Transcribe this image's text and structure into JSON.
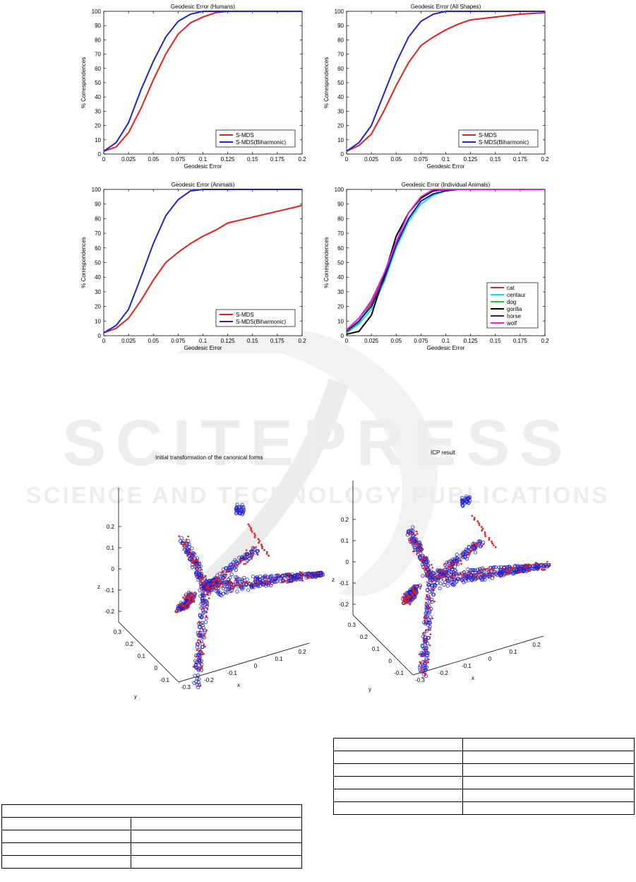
{
  "watermark": {
    "brand": "SCITEPRESS",
    "tagline": "SCIENCE AND TECHNOLOGY PUBLICATIONS"
  },
  "figure_top": {
    "panels": [
      {
        "title": "Geodesic Error (Humans)"
      },
      {
        "title": "Geodesic Error (All Shapes)"
      },
      {
        "title": "Geodesic Error (Animals)"
      },
      {
        "title": "Geodesic Error (Individual Animals)"
      }
    ]
  },
  "figure_bottom": {
    "left_title": "Initial transformation of the canonical forms",
    "right_title": "ICP result",
    "z_ticks": [
      "0.2",
      "0.1",
      "0",
      "-0.1",
      "-0.2"
    ],
    "y_ticks": [
      "0.3",
      "0.2",
      "0.1",
      "0",
      "-0.1"
    ],
    "x_ticks": [
      "0.2",
      "0.1",
      "0",
      "-0.1",
      "-0.2",
      "-0.3"
    ],
    "axis_x": "x",
    "axis_y": "y",
    "axis_z": "z",
    "colors": {
      "series_a": "#e0201c",
      "series_b": "#2222cc"
    }
  },
  "chart_data": [
    {
      "type": "line",
      "title": "Geodesic Error (Humans)",
      "xlabel": "Geodesic Error",
      "ylabel": "% Correspondences",
      "xlim": [
        0,
        0.2
      ],
      "ylim": [
        0,
        100
      ],
      "xticks": [
        "0",
        "0.025",
        "0.05",
        "0.075",
        "0.1",
        "0.125",
        "0.15",
        "0.175",
        "0.2"
      ],
      "yticks": [
        "0",
        "10",
        "20",
        "30",
        "40",
        "50",
        "60",
        "70",
        "80",
        "90",
        "100"
      ],
      "legend": "bottom-right",
      "series": [
        {
          "name": "S-MDS",
          "color": "#e0201c",
          "x": [
            0,
            0.0125,
            0.025,
            0.0375,
            0.05,
            0.0625,
            0.075,
            0.0875,
            0.1,
            0.1125,
            0.125,
            0.15,
            0.2
          ],
          "y": [
            2,
            5,
            15,
            32,
            52,
            70,
            84,
            92,
            96,
            99,
            100,
            100,
            100
          ]
        },
        {
          "name": "S-MDS(Biharmonic)",
          "color": "#2222cc",
          "x": [
            0,
            0.0125,
            0.025,
            0.0375,
            0.05,
            0.0625,
            0.075,
            0.0875,
            0.1,
            0.1125,
            0.125,
            0.2
          ],
          "y": [
            2,
            8,
            22,
            45,
            65,
            82,
            93,
            98,
            100,
            100,
            100,
            100
          ]
        }
      ]
    },
    {
      "type": "line",
      "title": "Geodesic Error (All Shapes)",
      "xlabel": "Geodesic Error",
      "ylabel": "% Correspondences",
      "xlim": [
        0,
        0.2
      ],
      "ylim": [
        0,
        100
      ],
      "xticks": [
        "0",
        "0.025",
        "0.05",
        "0.075",
        "0.1",
        "0.125",
        "0.15",
        "0.175",
        "0.2"
      ],
      "yticks": [
        "0",
        "10",
        "20",
        "30",
        "40",
        "50",
        "60",
        "70",
        "80",
        "90",
        "100"
      ],
      "legend": "bottom-right",
      "series": [
        {
          "name": "S-MDS",
          "color": "#e0201c",
          "x": [
            0,
            0.0125,
            0.025,
            0.0375,
            0.05,
            0.0625,
            0.075,
            0.0875,
            0.1,
            0.1125,
            0.125,
            0.15,
            0.175,
            0.2
          ],
          "y": [
            2,
            6,
            14,
            30,
            48,
            64,
            76,
            82,
            87,
            91,
            94,
            96,
            98,
            99
          ]
        },
        {
          "name": "S-MDS(Biharmonic)",
          "color": "#2222cc",
          "x": [
            0,
            0.0125,
            0.025,
            0.0375,
            0.05,
            0.0625,
            0.075,
            0.0875,
            0.1,
            0.1125,
            0.125,
            0.15,
            0.2
          ],
          "y": [
            2,
            8,
            20,
            42,
            64,
            82,
            93,
            98,
            100,
            100,
            100,
            100,
            100
          ]
        }
      ]
    },
    {
      "type": "line",
      "title": "Geodesic Error (Animals)",
      "xlabel": "Geodesic Error",
      "ylabel": "% Correspondences",
      "xlim": [
        0,
        0.2
      ],
      "ylim": [
        0,
        100
      ],
      "xticks": [
        "0",
        "0.025",
        "0.05",
        "0.075",
        "0.1",
        "0.125",
        "0.15",
        "0.175",
        "0.2"
      ],
      "yticks": [
        "0",
        "10",
        "20",
        "30",
        "40",
        "50",
        "60",
        "70",
        "80",
        "90",
        "100"
      ],
      "legend": "bottom-right",
      "series": [
        {
          "name": "S-MDS",
          "color": "#e0201c",
          "x": [
            0,
            0.0125,
            0.025,
            0.0375,
            0.05,
            0.0625,
            0.075,
            0.0875,
            0.1,
            0.1125,
            0.125,
            0.15,
            0.175,
            0.2
          ],
          "y": [
            2,
            5,
            12,
            24,
            38,
            50,
            57,
            63,
            68,
            72,
            77,
            81,
            85,
            89
          ]
        },
        {
          "name": "S-MDS(Biharmonic)",
          "color": "#2222cc",
          "x": [
            0,
            0.0125,
            0.025,
            0.0375,
            0.05,
            0.0625,
            0.075,
            0.0875,
            0.1,
            0.1125,
            0.125,
            0.2
          ],
          "y": [
            2,
            7,
            18,
            40,
            63,
            82,
            93,
            99,
            100,
            100,
            100,
            100
          ]
        }
      ]
    },
    {
      "type": "line",
      "title": "Geodesic Error (Individual Animals)",
      "xlabel": "Geodesic Error",
      "ylabel": "% Correspondences",
      "xlim": [
        0,
        0.2
      ],
      "ylim": [
        0,
        100
      ],
      "xticks": [
        "0",
        "0.025",
        "0.05",
        "0.075",
        "0.1",
        "0.125",
        "0.15",
        "0.175",
        "0.2"
      ],
      "yticks": [
        "0",
        "10",
        "20",
        "30",
        "40",
        "50",
        "60",
        "70",
        "80",
        "90",
        "100"
      ],
      "legend": "bottom-right",
      "series": [
        {
          "name": "cat",
          "color": "#e0201c",
          "x": [
            0,
            0.0125,
            0.025,
            0.0375,
            0.05,
            0.0625,
            0.075,
            0.0875,
            0.1,
            0.1125,
            0.125,
            0.2
          ],
          "y": [
            3,
            10,
            22,
            40,
            62,
            80,
            92,
            97,
            99,
            100,
            100,
            100
          ]
        },
        {
          "name": "centaur",
          "color": "#22d8e0",
          "x": [
            0,
            0.0125,
            0.025,
            0.0375,
            0.05,
            0.0625,
            0.075,
            0.0875,
            0.1,
            0.1125,
            0.125,
            0.2
          ],
          "y": [
            2,
            8,
            18,
            36,
            60,
            78,
            90,
            96,
            99,
            100,
            100,
            100
          ]
        },
        {
          "name": "dog",
          "color": "#22cc22",
          "x": [
            0,
            0.0125,
            0.025,
            0.0375,
            0.05,
            0.0625,
            0.075,
            0.0875,
            0.1,
            0.1125,
            0.125,
            0.2
          ],
          "y": [
            2,
            9,
            24,
            42,
            62,
            80,
            92,
            97,
            99,
            100,
            100,
            100
          ]
        },
        {
          "name": "gorilla",
          "color": "#000000",
          "x": [
            0,
            0.0125,
            0.025,
            0.0375,
            0.05,
            0.0625,
            0.075,
            0.0875,
            0.1,
            0.1125,
            0.2
          ],
          "y": [
            1,
            3,
            14,
            40,
            68,
            84,
            94,
            99,
            100,
            100,
            100
          ]
        },
        {
          "name": "horse",
          "color": "#1a1aa8",
          "x": [
            0,
            0.0125,
            0.025,
            0.0375,
            0.05,
            0.0625,
            0.075,
            0.0875,
            0.1,
            0.1125,
            0.125,
            0.2
          ],
          "y": [
            3,
            10,
            20,
            38,
            62,
            80,
            92,
            97,
            99,
            100,
            100,
            100
          ]
        },
        {
          "name": "wolf",
          "color": "#e022e0",
          "x": [
            0,
            0.0125,
            0.025,
            0.0375,
            0.05,
            0.0625,
            0.075,
            0.0875,
            0.1,
            0.2
          ],
          "y": [
            4,
            12,
            24,
            42,
            64,
            84,
            95,
            100,
            100,
            100
          ]
        }
      ]
    }
  ],
  "tables": {
    "left_rows": 5,
    "right_rows": 6
  }
}
